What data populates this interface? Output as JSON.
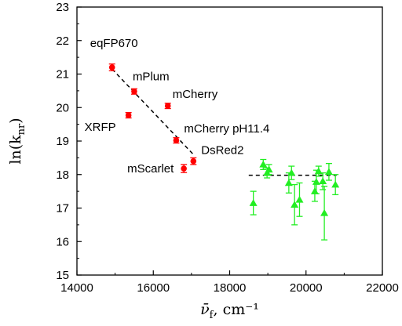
{
  "chart_data": {
    "type": "scatter",
    "x_label": "ν̄f, cm⁻¹",
    "y_label": "ln(knr)",
    "xlim": [
      14000,
      22000
    ],
    "ylim": [
      15,
      23
    ],
    "x_ticks": [
      "14000",
      "16000",
      "18000",
      "20000",
      "22000"
    ],
    "y_ticks": [
      "15",
      "16",
      "17",
      "18",
      "19",
      "20",
      "21",
      "22",
      "23"
    ],
    "grid": false,
    "legend": "none",
    "series": [
      {
        "color": "#ff0000",
        "marker": "circle",
        "points": [
          {
            "x": 14920,
            "y": 21.2,
            "err": 0.1,
            "label": "eqFP670"
          },
          {
            "x": 15500,
            "y": 20.48,
            "err": 0.08,
            "label": "mPlum"
          },
          {
            "x": 16380,
            "y": 20.05,
            "err": 0.08,
            "label": "mCherry"
          },
          {
            "x": 15350,
            "y": 19.77,
            "err": 0.08,
            "label": "XRFP"
          },
          {
            "x": 16600,
            "y": 19.02,
            "err": 0.08,
            "label": "mCherry pH11.4"
          },
          {
            "x": 17050,
            "y": 18.4,
            "err": 0.1,
            "label": "DsRed2"
          },
          {
            "x": 16800,
            "y": 18.18,
            "err": 0.12,
            "label": "mScarlet"
          }
        ]
      },
      {
        "color": "#22ee22",
        "marker": "triangle",
        "points": [
          {
            "x": 18620,
            "y": 17.15,
            "err_up": 0.35,
            "err_down": 0.35
          },
          {
            "x": 18880,
            "y": 18.3,
            "err_up": 0.15,
            "err_down": 0.15
          },
          {
            "x": 18980,
            "y": 18.05,
            "err_up": 0.15,
            "err_down": 0.15
          },
          {
            "x": 19030,
            "y": 18.15,
            "err_up": 0.15,
            "err_down": 0.15
          },
          {
            "x": 19550,
            "y": 17.75,
            "err_up": 0.3,
            "err_down": 0.3
          },
          {
            "x": 19620,
            "y": 18.05,
            "err_up": 0.2,
            "err_down": 0.2
          },
          {
            "x": 19700,
            "y": 17.1,
            "err_up": 0.6,
            "err_down": 0.6
          },
          {
            "x": 19830,
            "y": 17.25,
            "err_up": 0.5,
            "err_down": 0.5
          },
          {
            "x": 20230,
            "y": 17.5,
            "err_up": 0.3,
            "err_down": 0.3
          },
          {
            "x": 20270,
            "y": 17.78,
            "err_up": 0.35,
            "err_down": 0.35
          },
          {
            "x": 20330,
            "y": 18.1,
            "err_up": 0.15,
            "err_down": 0.15
          },
          {
            "x": 20440,
            "y": 17.8,
            "err_up": 0.25,
            "err_down": 0.25
          },
          {
            "x": 20480,
            "y": 16.85,
            "err_up": 0.8,
            "err_down": 0.8
          },
          {
            "x": 20600,
            "y": 18.08,
            "err_up": 0.25,
            "err_down": 0.25
          },
          {
            "x": 20770,
            "y": 17.7,
            "err_up": 0.3,
            "err_down": 0.3
          }
        ]
      }
    ],
    "fit_lines": [
      {
        "x": [
          14920,
          17050
        ],
        "y": [
          21.15,
          18.6
        ],
        "style": "dashed"
      },
      {
        "x": [
          18500,
          20800
        ],
        "y": [
          17.98,
          17.98
        ],
        "style": "dashed"
      }
    ]
  }
}
